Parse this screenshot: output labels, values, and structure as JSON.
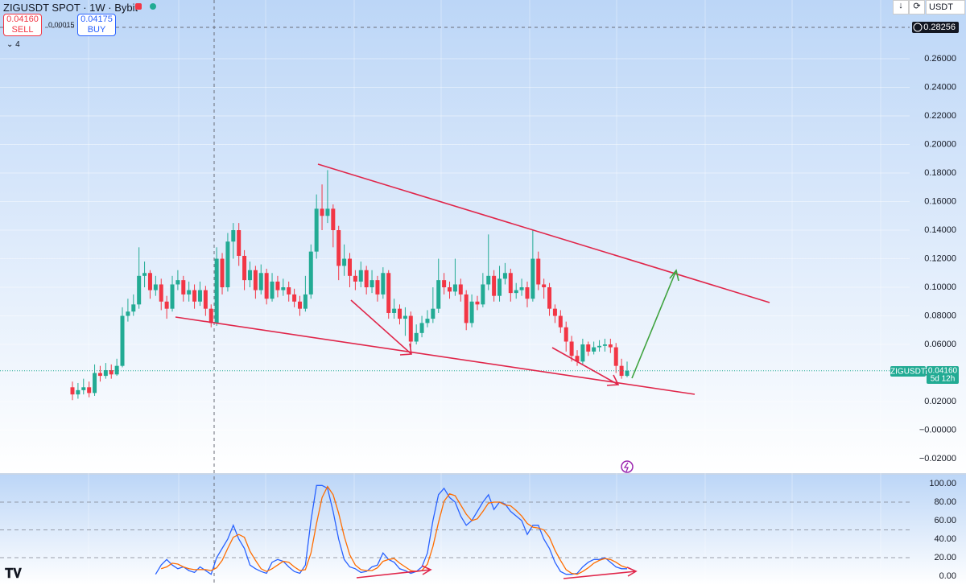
{
  "header": {
    "title": "ZIGUSDT SPOT · 1W · Bybit",
    "sell_price": "0.04160",
    "sell_label": "SELL",
    "spread": "0.00015",
    "buy_price": "0.04175",
    "buy_label": "BUY",
    "indicator_count": "4",
    "currency": "USDT",
    "crosshair_price": "0.28256",
    "symbol_tag": "ZIGUSDT",
    "last_price": "0.04160",
    "countdown": "5d 12h"
  },
  "chart_data": [
    {
      "type": "candlestick",
      "up_color": "#22ab94",
      "down_color": "#f23645",
      "grid": true,
      "ylim": [
        -0.0301,
        0.3011
      ],
      "yticks": [
        {
          "value": -0.02,
          "label": "−0.02000"
        },
        {
          "value": 0,
          "label": "−0.00000"
        },
        {
          "value": 0.02,
          "label": "0.02000"
        },
        {
          "value": 0.04,
          "label": "0.04000"
        },
        {
          "value": 0.06,
          "label": "0.06000"
        },
        {
          "value": 0.08,
          "label": "0.08000"
        },
        {
          "value": 0.1,
          "label": "0.10000"
        },
        {
          "value": 0.12,
          "label": "0.12000"
        },
        {
          "value": 0.14,
          "label": "0.14000"
        },
        {
          "value": 0.16,
          "label": "0.16000"
        },
        {
          "value": 0.18,
          "label": "0.18000"
        },
        {
          "value": 0.2,
          "label": "0.20000"
        },
        {
          "value": 0.22,
          "label": "0.22000"
        },
        {
          "value": 0.24,
          "label": "0.24000"
        },
        {
          "value": 0.26,
          "label": "0.26000"
        }
      ],
      "open": [
        0.03,
        0.025,
        0.028,
        0.03,
        0.026,
        0.04,
        0.038,
        0.042,
        0.039,
        0.045,
        0.08,
        0.083,
        0.088,
        0.108,
        0.11,
        0.098,
        0.102,
        0.09,
        0.085,
        0.102,
        0.105,
        0.095,
        0.098,
        0.09,
        0.098,
        0.085,
        0.075,
        0.12,
        0.1,
        0.132,
        0.14,
        0.122,
        0.105,
        0.112,
        0.098,
        0.11,
        0.092,
        0.104,
        0.098,
        0.1,
        0.095,
        0.09,
        0.085,
        0.095,
        0.125,
        0.155,
        0.15,
        0.155,
        0.14,
        0.115,
        0.12,
        0.108,
        0.104,
        0.112,
        0.1,
        0.105,
        0.095,
        0.11,
        0.082,
        0.085,
        0.078,
        0.08,
        0.062,
        0.068,
        0.075,
        0.078,
        0.085,
        0.105,
        0.1,
        0.097,
        0.102,
        0.095,
        0.075,
        0.09,
        0.088,
        0.102,
        0.108,
        0.094,
        0.106,
        0.11,
        0.096,
        0.098,
        0.1,
        0.092,
        0.12,
        0.102,
        0.1,
        0.085,
        0.08,
        0.072,
        0.062,
        0.052,
        0.048,
        0.06,
        0.055,
        0.058,
        0.059,
        0.06,
        0.058,
        0.045,
        0.038
      ],
      "high": [
        0.034,
        0.033,
        0.036,
        0.034,
        0.046,
        0.045,
        0.047,
        0.046,
        0.05,
        0.086,
        0.092,
        0.095,
        0.128,
        0.118,
        0.112,
        0.108,
        0.106,
        0.094,
        0.108,
        0.112,
        0.108,
        0.104,
        0.102,
        0.104,
        0.101,
        0.088,
        0.128,
        0.124,
        0.138,
        0.145,
        0.145,
        0.126,
        0.118,
        0.115,
        0.116,
        0.113,
        0.11,
        0.108,
        0.106,
        0.104,
        0.099,
        0.094,
        0.108,
        0.13,
        0.165,
        0.172,
        0.182,
        0.158,
        0.143,
        0.13,
        0.124,
        0.112,
        0.118,
        0.115,
        0.112,
        0.108,
        0.114,
        0.112,
        0.092,
        0.088,
        0.086,
        0.083,
        0.074,
        0.08,
        0.084,
        0.1,
        0.12,
        0.11,
        0.104,
        0.12,
        0.106,
        0.098,
        0.095,
        0.094,
        0.11,
        0.137,
        0.112,
        0.115,
        0.117,
        0.113,
        0.103,
        0.106,
        0.104,
        0.14,
        0.125,
        0.106,
        0.103,
        0.088,
        0.084,
        0.076,
        0.066,
        0.056,
        0.064,
        0.062,
        0.062,
        0.063,
        0.064,
        0.064,
        0.061,
        0.05,
        0.048
      ],
      "low": [
        0.021,
        0.022,
        0.025,
        0.023,
        0.024,
        0.034,
        0.036,
        0.036,
        0.038,
        0.044,
        0.076,
        0.08,
        0.085,
        0.1,
        0.092,
        0.094,
        0.084,
        0.078,
        0.083,
        0.098,
        0.09,
        0.09,
        0.085,
        0.087,
        0.08,
        0.072,
        0.073,
        0.095,
        0.097,
        0.12,
        0.115,
        0.098,
        0.1,
        0.092,
        0.095,
        0.088,
        0.09,
        0.093,
        0.094,
        0.09,
        0.086,
        0.08,
        0.083,
        0.092,
        0.12,
        0.14,
        0.145,
        0.128,
        0.105,
        0.108,
        0.1,
        0.098,
        0.1,
        0.095,
        0.096,
        0.09,
        0.092,
        0.078,
        0.078,
        0.074,
        0.066,
        0.058,
        0.06,
        0.065,
        0.072,
        0.075,
        0.082,
        0.095,
        0.092,
        0.094,
        0.09,
        0.07,
        0.072,
        0.084,
        0.086,
        0.098,
        0.09,
        0.09,
        0.102,
        0.09,
        0.092,
        0.094,
        0.086,
        0.09,
        0.098,
        0.092,
        0.08,
        0.075,
        0.068,
        0.055,
        0.048,
        0.045,
        0.046,
        0.052,
        0.053,
        0.055,
        0.055,
        0.054,
        0.04,
        0.036,
        0.037
      ],
      "close": [
        0.025,
        0.028,
        0.03,
        0.026,
        0.04,
        0.038,
        0.042,
        0.039,
        0.045,
        0.08,
        0.083,
        0.088,
        0.108,
        0.11,
        0.098,
        0.102,
        0.09,
        0.085,
        0.102,
        0.105,
        0.095,
        0.098,
        0.09,
        0.098,
        0.085,
        0.075,
        0.12,
        0.1,
        0.132,
        0.14,
        0.122,
        0.105,
        0.112,
        0.098,
        0.11,
        0.092,
        0.104,
        0.098,
        0.1,
        0.095,
        0.09,
        0.085,
        0.095,
        0.125,
        0.155,
        0.15,
        0.155,
        0.14,
        0.115,
        0.12,
        0.108,
        0.104,
        0.112,
        0.1,
        0.105,
        0.095,
        0.11,
        0.082,
        0.085,
        0.078,
        0.08,
        0.062,
        0.068,
        0.075,
        0.078,
        0.085,
        0.105,
        0.1,
        0.097,
        0.102,
        0.095,
        0.075,
        0.09,
        0.088,
        0.102,
        0.108,
        0.094,
        0.106,
        0.11,
        0.096,
        0.098,
        0.1,
        0.092,
        0.12,
        0.102,
        0.1,
        0.085,
        0.08,
        0.072,
        0.062,
        0.052,
        0.048,
        0.06,
        0.055,
        0.058,
        0.059,
        0.06,
        0.058,
        0.045,
        0.038,
        0.0416
      ]
    },
    {
      "type": "line",
      "ylim": [
        -9.6,
        109.6
      ],
      "yticks": [
        {
          "value": 0,
          "label": "0.00"
        },
        {
          "value": 20,
          "label": "20.00"
        },
        {
          "value": 40,
          "label": "40.00"
        },
        {
          "value": 60,
          "label": "60.00"
        },
        {
          "value": 80,
          "label": "80.00"
        },
        {
          "value": 100,
          "label": "100.00"
        }
      ],
      "bands": [
        20,
        50,
        80
      ],
      "series": [
        {
          "color": "#2962ff",
          "values": [
            null,
            null,
            null,
            null,
            null,
            null,
            null,
            null,
            null,
            null,
            null,
            null,
            null,
            null,
            null,
            2,
            12,
            18,
            12,
            8,
            10,
            6,
            4,
            10,
            6,
            2,
            20,
            30,
            40,
            55,
            40,
            30,
            12,
            8,
            5,
            3,
            15,
            18,
            16,
            10,
            5,
            3,
            12,
            60,
            98,
            98,
            95,
            70,
            40,
            18,
            10,
            8,
            4,
            5,
            10,
            12,
            25,
            18,
            15,
            8,
            6,
            3,
            5,
            10,
            25,
            60,
            88,
            95,
            85,
            80,
            65,
            55,
            60,
            70,
            80,
            88,
            72,
            80,
            78,
            70,
            65,
            60,
            45,
            55,
            55,
            40,
            30,
            15,
            5,
            2,
            2,
            3,
            10,
            15,
            18,
            18,
            20,
            15,
            10,
            8,
            8
          ]
        },
        {
          "color": "#ff6d00",
          "values": [
            null,
            null,
            null,
            null,
            null,
            null,
            null,
            null,
            null,
            null,
            null,
            null,
            null,
            null,
            null,
            null,
            8,
            10,
            14,
            13,
            10,
            8,
            7,
            7,
            7,
            6,
            9,
            17,
            30,
            42,
            45,
            42,
            27,
            17,
            8,
            5,
            8,
            12,
            16,
            15,
            10,
            6,
            7,
            25,
            57,
            85,
            97,
            88,
            68,
            43,
            23,
            12,
            7,
            6,
            6,
            9,
            16,
            18,
            19,
            14,
            10,
            6,
            5,
            6,
            13,
            32,
            58,
            81,
            89,
            87,
            77,
            67,
            60,
            62,
            70,
            79,
            80,
            80,
            77,
            76,
            71,
            65,
            57,
            53,
            52,
            50,
            42,
            28,
            17,
            7,
            3,
            2,
            5,
            9,
            14,
            17,
            19,
            18,
            15,
            11,
            9
          ]
        }
      ]
    }
  ]
}
